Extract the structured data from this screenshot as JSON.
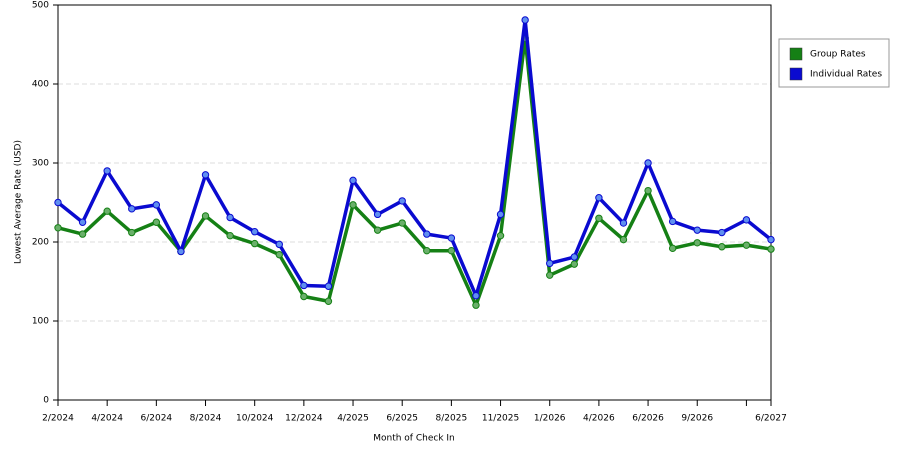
{
  "chart_data": {
    "type": "line",
    "x_label": "Month of Check In",
    "y_label": "Lowest Average Rate (USD)",
    "categories": [
      "2/2024",
      null,
      "4/2024",
      null,
      "6/2024",
      null,
      "8/2024",
      null,
      "10/2024",
      null,
      "12/2024",
      null,
      "4/2025",
      null,
      "6/2025",
      null,
      "8/2025",
      null,
      "11/2025",
      null,
      "1/2026",
      null,
      "4/2026",
      null,
      "6/2026",
      null,
      "9/2026",
      null,
      null,
      "6/2027"
    ],
    "series": [
      {
        "name": "Group Rates",
        "color": "#158015",
        "values": [
          218,
          210,
          239,
          212,
          225,
          188,
          233,
          208,
          198,
          184,
          131,
          125,
          247,
          215,
          224,
          189,
          189,
          120,
          208,
          458,
          158,
          172,
          230,
          203,
          265,
          192,
          199,
          194,
          196,
          191
        ]
      },
      {
        "name": "Individual Rates",
        "color": "#0a0ad0",
        "values": [
          250,
          225,
          290,
          242,
          247,
          188,
          285,
          231,
          213,
          197,
          145,
          144,
          278,
          235,
          252,
          210,
          205,
          132,
          235,
          481,
          173,
          181,
          256,
          224,
          300,
          226,
          215,
          212,
          228,
          203
        ]
      }
    ],
    "ylim": [
      0,
      500
    ],
    "yticks": [
      0,
      100,
      200,
      300,
      400,
      500
    ],
    "grid": true,
    "legend": "right"
  }
}
